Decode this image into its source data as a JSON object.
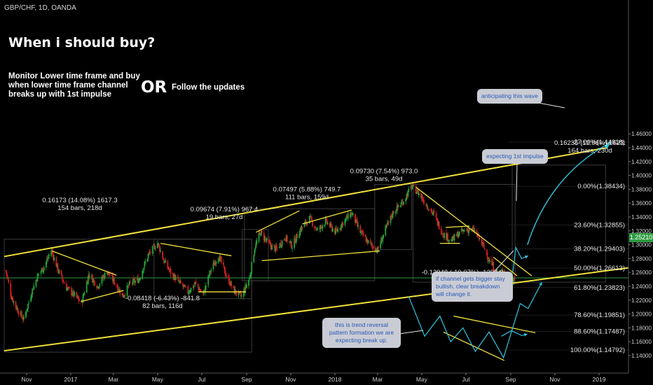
{
  "symbol_label": "GBP/CHF, 1D, OANDA",
  "headline": "When i should buy?",
  "instruction_text": "Monitor Lower time frame and buy when lower time frame channel breaks up with 1st impulse",
  "or_word": "OR",
  "follow_text": "Follow the updates",
  "current_price": "1.25210",
  "colors": {
    "background": "#000000",
    "up_candle": "#1fa83a",
    "down_candle": "#d61f1f",
    "trendline": "#f2e23c",
    "current_price_line": "#2e9c42",
    "projection": "#33c6e0",
    "callout_bg": "#c9ccd4",
    "callout_text": "#2a58b8"
  },
  "callouts": {
    "anticipating": "anticipating this wave",
    "expecting_impulse": "expecting 1st impulse",
    "channel_bigger": "if channel gets bigger stay bullish. clear breakdown will change it.",
    "trend_reversal": "this is trend reversal pattern formation we are expecting break up."
  },
  "measurements": [
    {
      "line1": "0.16173 (14.08%) 1617.3",
      "line2": "154 bars, 218d"
    },
    {
      "line1": "-0.08418 (-6.43%) -841.8",
      "line2": "82 bars, 116d"
    },
    {
      "line1": "0.09674 (7.91%) 967.4",
      "line2": "19 bars, 27d"
    },
    {
      "line1": "0.07497 (5.88%) 749.7",
      "line2": "111 bars, 159d"
    },
    {
      "line1": "0.09730 (7.54%) 973.0",
      "line2": "35 bars, 49d"
    },
    {
      "line1": "-0.13948 (-10.07%) -1394.8",
      "line2": "103 bars, 145d"
    },
    {
      "line1": "0.16235 (12.96%) 1623.",
      "line2": "164 bars, 230d"
    }
  ],
  "fib_levels": [
    {
      "label": "-27.00%(1.44818)",
      "price": 1.44818
    },
    {
      "label": "0.00%(1.38434)",
      "price": 1.38434
    },
    {
      "label": "23.60%(1.32855)",
      "price": 1.32855
    },
    {
      "label": "38.20%(1.29403)",
      "price": 1.29403
    },
    {
      "label": "50.00%(1.26613)",
      "price": 1.26613
    },
    {
      "label": "61.80%(1.23823)",
      "price": 1.23823
    },
    {
      "label": "78.60%(1.19851)",
      "price": 1.19851
    },
    {
      "label": "88.60%(1.17487)",
      "price": 1.17487
    },
    {
      "label": "100.00%(1.14792)",
      "price": 1.14792
    }
  ],
  "chart_data": {
    "type": "candlestick",
    "title": "GBP/CHF, 1D, OANDA",
    "ylim": [
      1.13,
      1.47
    ],
    "xlim": [
      "2016-10-01",
      "2019-02-20"
    ],
    "y_ticks": [
      "1.46000",
      "1.44000",
      "1.42000",
      "1.40000",
      "1.38000",
      "1.36000",
      "1.34000",
      "1.32000",
      "1.30000",
      "1.28000",
      "1.26000",
      "1.24000",
      "1.22000",
      "1.20000",
      "1.18000",
      "1.16000",
      "1.14000"
    ],
    "x_ticks": [
      {
        "label": "Nov",
        "date": "2016-11-01"
      },
      {
        "label": "2017",
        "date": "2017-01-01"
      },
      {
        "label": "Mar",
        "date": "2017-03-01"
      },
      {
        "label": "May",
        "date": "2017-05-01"
      },
      {
        "label": "Jul",
        "date": "2017-07-01"
      },
      {
        "label": "Sep",
        "date": "2017-09-01"
      },
      {
        "label": "Nov",
        "date": "2017-11-01"
      },
      {
        "label": "2018",
        "date": "2018-01-01"
      },
      {
        "label": "Mar",
        "date": "2018-03-01"
      },
      {
        "label": "May",
        "date": "2018-05-01"
      },
      {
        "label": "Jul",
        "date": "2018-07-01"
      },
      {
        "label": "Sep",
        "date": "2018-09-01"
      },
      {
        "label": "Nov",
        "date": "2018-11-01"
      },
      {
        "label": "2019",
        "date": "2019-01-01"
      }
    ],
    "grid": false,
    "price_anchors": [
      [
        "2016-10-03",
        1.263
      ],
      [
        "2016-10-11",
        1.225
      ],
      [
        "2016-10-20",
        1.205
      ],
      [
        "2016-10-28",
        1.192
      ],
      [
        "2016-11-08",
        1.232
      ],
      [
        "2016-11-16",
        1.255
      ],
      [
        "2016-11-25",
        1.268
      ],
      [
        "2016-12-05",
        1.292
      ],
      [
        "2016-12-15",
        1.262
      ],
      [
        "2016-12-26",
        1.238
      ],
      [
        "2017-01-05",
        1.228
      ],
      [
        "2017-01-16",
        1.216
      ],
      [
        "2017-01-26",
        1.258
      ],
      [
        "2017-02-07",
        1.24
      ],
      [
        "2017-02-20",
        1.262
      ],
      [
        "2017-03-03",
        1.245
      ],
      [
        "2017-03-14",
        1.226
      ],
      [
        "2017-03-24",
        1.244
      ],
      [
        "2017-04-05",
        1.25
      ],
      [
        "2017-04-18",
        1.285
      ],
      [
        "2017-05-01",
        1.303
      ],
      [
        "2017-05-10",
        1.276
      ],
      [
        "2017-05-20",
        1.258
      ],
      [
        "2017-06-01",
        1.244
      ],
      [
        "2017-06-12",
        1.232
      ],
      [
        "2017-06-22",
        1.244
      ],
      [
        "2017-07-03",
        1.228
      ],
      [
        "2017-07-13",
        1.262
      ],
      [
        "2017-07-24",
        1.285
      ],
      [
        "2017-08-04",
        1.255
      ],
      [
        "2017-08-15",
        1.233
      ],
      [
        "2017-08-25",
        1.225
      ],
      [
        "2017-09-05",
        1.252
      ],
      [
        "2017-09-12",
        1.295
      ],
      [
        "2017-09-20",
        1.318
      ],
      [
        "2017-10-02",
        1.3
      ],
      [
        "2017-10-12",
        1.293
      ],
      [
        "2017-10-24",
        1.311
      ],
      [
        "2017-11-03",
        1.298
      ],
      [
        "2017-11-14",
        1.322
      ],
      [
        "2017-11-27",
        1.338
      ],
      [
        "2017-12-08",
        1.32
      ],
      [
        "2017-12-19",
        1.334
      ],
      [
        "2018-01-02",
        1.318
      ],
      [
        "2018-01-12",
        1.332
      ],
      [
        "2018-01-24",
        1.346
      ],
      [
        "2018-02-05",
        1.318
      ],
      [
        "2018-02-17",
        1.302
      ],
      [
        "2018-03-01",
        1.292
      ],
      [
        "2018-03-12",
        1.322
      ],
      [
        "2018-03-23",
        1.348
      ],
      [
        "2018-04-05",
        1.362
      ],
      [
        "2018-04-17",
        1.384
      ],
      [
        "2018-04-27",
        1.374
      ],
      [
        "2018-05-08",
        1.357
      ],
      [
        "2018-05-18",
        1.343
      ],
      [
        "2018-05-30",
        1.316
      ],
      [
        "2018-06-11",
        1.306
      ],
      [
        "2018-06-21",
        1.316
      ],
      [
        "2018-07-02",
        1.322
      ],
      [
        "2018-07-13",
        1.32
      ],
      [
        "2018-07-24",
        1.3
      ],
      [
        "2018-08-03",
        1.276
      ],
      [
        "2018-08-14",
        1.258
      ],
      [
        "2018-08-24",
        1.262
      ],
      [
        "2018-08-31",
        1.25
      ],
      [
        "2018-09-06",
        1.252
      ]
    ]
  }
}
